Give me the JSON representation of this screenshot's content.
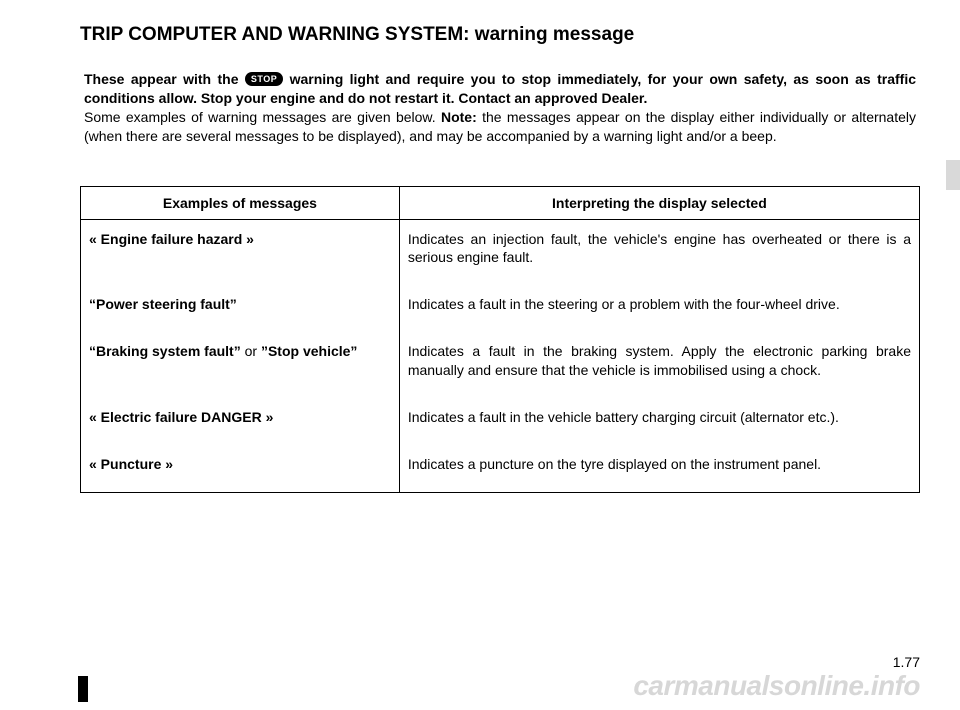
{
  "title": "TRIP COMPUTER AND WARNING SYSTEM: warning message",
  "intro": {
    "lead_before_icon": "These appear with the ",
    "stop_icon_label": "STOP",
    "lead_after_icon_bold": " warning light and require you to stop immediately, for your own safety, as soon as traffic conditions allow. Stop your engine and do not restart it. Contact an approved Dealer.",
    "body_plain_1": "Some examples of warning messages are given below. ",
    "note_label": "Note:",
    "body_plain_2": " the messages appear on the display either individually or alternately (when there are several messages to be displayed), and may be accompanied by a warning light and/or a beep."
  },
  "table": {
    "header_left": "Examples of messages",
    "header_right": "Interpreting the display selected",
    "rows": [
      {
        "label": "« Engine failure hazard »",
        "label_plain": "",
        "desc": "Indicates an injection fault, the vehicle's engine has overheated or there is a serious engine fault."
      },
      {
        "label": "“Power steering fault”",
        "label_plain": "",
        "desc": "Indicates a fault in the steering or a problem with the four-wheel drive."
      },
      {
        "label": "“Braking system fault”",
        "label_plain": " or ",
        "label2": "”Stop vehicle”",
        "desc": "Indicates a fault in the braking system. Apply the electronic parking brake manually and ensure that the vehicle is immobilised using a chock."
      },
      {
        "label": "« Electric failure DANGER »",
        "label_plain": "",
        "desc": "Indicates a fault in the vehicle battery charging circuit (alternator etc.)."
      },
      {
        "label": "« Puncture »",
        "label_plain": "",
        "desc": "Indicates a puncture on the tyre displayed on the instrument panel."
      }
    ]
  },
  "page_number": "1.77",
  "watermark": "carmanualsonline.info"
}
